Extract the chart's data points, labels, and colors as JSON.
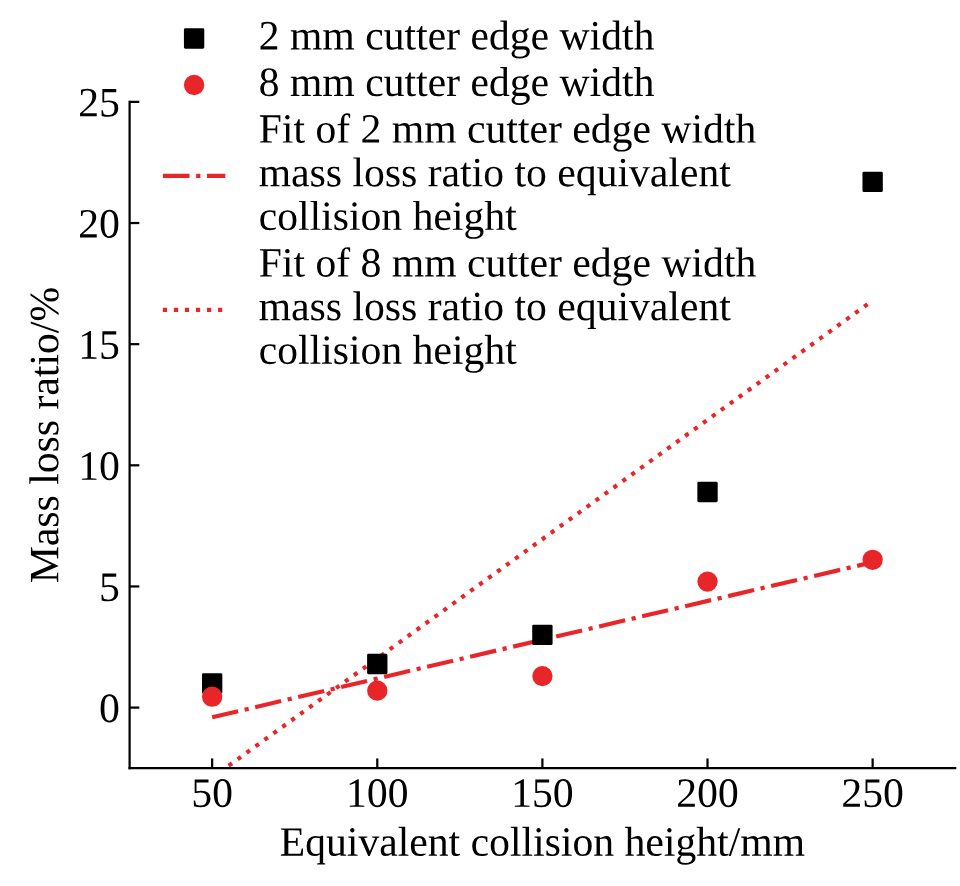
{
  "chart_data": {
    "type": "scatter",
    "xlabel": "Equivalent collision height/mm",
    "ylabel": "Mass loss ratio/%",
    "x": [
      50,
      100,
      150,
      200,
      250
    ],
    "series": [
      {
        "name": "2 mm cutter edge width",
        "color": "#000000",
        "marker": "square",
        "values": [
          1.0,
          1.8,
          3.0,
          8.9,
          21.7
        ]
      },
      {
        "name": "8 mm cutter edge width",
        "color": "#e8262a",
        "marker": "circle",
        "values": [
          0.45,
          0.7,
          1.3,
          5.2,
          6.1
        ]
      },
      {
        "name": "Fit of 2 mm cutter edge width\nmass loss ratio to equivalent\ncollision height",
        "type": "line",
        "color": "#e8262a",
        "line_style": "dashdot",
        "marker": "none",
        "x": [
          50,
          250
        ],
        "values": [
          -0.4,
          6.0
        ]
      },
      {
        "name": "Fit of 8 mm cutter edge width\nmass loss ratio to equivalent\ncollision height",
        "type": "line",
        "color": "#e8262a",
        "line_style": "dotted",
        "marker": "none",
        "x": [
          55,
          250
        ],
        "values": [
          -2.4,
          16.8
        ]
      }
    ],
    "xlim": [
      25,
      275
    ],
    "ylim": [
      -2.5,
      25
    ],
    "xticks": [
      50,
      100,
      150,
      200,
      250
    ],
    "yticks": [
      0,
      5,
      10,
      15,
      20,
      25
    ],
    "grid": false,
    "legend": "top left"
  }
}
